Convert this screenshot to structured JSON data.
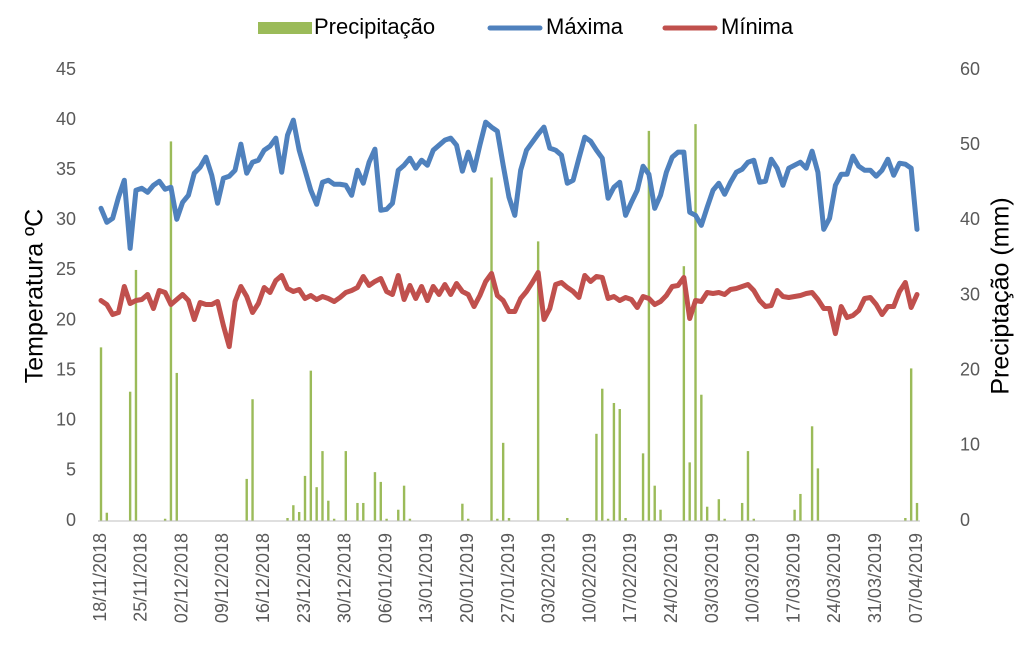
{
  "chart_data": {
    "type": "combo",
    "y_label": "Temperatura ºC",
    "y2_label": "Preciptação (mm)",
    "categories": [
      "18/11/2018",
      null,
      null,
      null,
      null,
      null,
      null,
      "25/11/2018",
      null,
      null,
      null,
      null,
      null,
      null,
      "02/12/2018",
      null,
      null,
      null,
      null,
      null,
      null,
      "09/12/2018",
      null,
      null,
      null,
      null,
      null,
      null,
      "16/12/2018",
      null,
      null,
      null,
      null,
      null,
      null,
      "23/12/2018",
      null,
      null,
      null,
      null,
      null,
      null,
      "30/12/2018",
      null,
      null,
      null,
      null,
      null,
      null,
      "06/01/2019",
      null,
      null,
      null,
      null,
      null,
      null,
      "13/01/2019",
      null,
      null,
      null,
      null,
      null,
      null,
      "20/01/2019",
      null,
      null,
      null,
      null,
      null,
      null,
      "27/01/2019",
      null,
      null,
      null,
      null,
      null,
      null,
      "03/02/2019",
      null,
      null,
      null,
      null,
      null,
      null,
      "10/02/2019",
      null,
      null,
      null,
      null,
      null,
      null,
      "17/02/2019",
      null,
      null,
      null,
      null,
      null,
      null,
      "24/02/2019",
      null,
      null,
      null,
      null,
      null,
      null,
      "03/03/2019",
      null,
      null,
      null,
      null,
      null,
      null,
      "10/03/2019",
      null,
      null,
      null,
      null,
      null,
      null,
      "17/03/2019",
      null,
      null,
      null,
      null,
      null,
      null,
      "24/03/2019",
      null,
      null,
      null,
      null,
      null,
      null,
      "31/03/2019",
      null,
      null,
      null,
      null,
      null,
      null,
      "07/04/2019"
    ],
    "series": [
      {
        "name": "Precipitação",
        "type": "bar",
        "axis": "y2",
        "color": "#9bbb59",
        "values": [
          23.1,
          1.1,
          0,
          0,
          0,
          17.2,
          33.4,
          0,
          0,
          0,
          0,
          0.3,
          50.5,
          19.7,
          0,
          0,
          0,
          0,
          0,
          0,
          0,
          0,
          0,
          0,
          0,
          5.6,
          16.2,
          0,
          0,
          0,
          0,
          0,
          0.4,
          2.1,
          1.2,
          6,
          20,
          4.5,
          9.3,
          2.7,
          0.3,
          0,
          9.3,
          0,
          2.4,
          2.4,
          0,
          6.5,
          5.2,
          0.3,
          0,
          1.5,
          4.7,
          0.3,
          0,
          0,
          0,
          0,
          0,
          0,
          0,
          0,
          2.3,
          0.3,
          0,
          0,
          0,
          45.7,
          0.3,
          10.4,
          0.4,
          0,
          0,
          0,
          0,
          37.2,
          0,
          0,
          0,
          0,
          0.4,
          0,
          0,
          0,
          0,
          11.6,
          17.6,
          0.3,
          15.7,
          14.9,
          0.4,
          0,
          0,
          9,
          51.9,
          4.7,
          1.5,
          0,
          0,
          0,
          33.9,
          7.8,
          52.8,
          16.8,
          1.9,
          0,
          2.9,
          0.3,
          0,
          0,
          2.4,
          9.3,
          0.3,
          0,
          0,
          0,
          0,
          0,
          0,
          1.5,
          3.6,
          0,
          12.6,
          7,
          0,
          0,
          0,
          0,
          0,
          0,
          0,
          0,
          0,
          0,
          0,
          0,
          0,
          0,
          0.4,
          20.3,
          2.4
        ]
      },
      {
        "name": "Máxima",
        "type": "line",
        "color": "#4f81bd",
        "values": [
          31.2,
          29.8,
          30.2,
          32.3,
          34,
          27.2,
          33,
          33.2,
          32.8,
          33.5,
          33.9,
          33.1,
          33.3,
          30.1,
          31.8,
          32.5,
          34.7,
          35.3,
          36.3,
          34.5,
          31.7,
          34.2,
          34.4,
          35,
          37.6,
          34.7,
          35.8,
          36,
          37,
          37.4,
          38.2,
          34.8,
          38.5,
          40,
          37,
          35,
          33,
          31.6,
          33.8,
          34,
          33.6,
          33.6,
          33.5,
          32.5,
          35,
          33.7,
          35.8,
          37.1,
          31,
          31.1,
          31.7,
          35,
          35.5,
          36.2,
          35.2,
          36,
          35.5,
          37,
          37.5,
          38,
          38.2,
          37.5,
          34.9,
          36.8,
          35,
          37.5,
          39.8,
          39.3,
          38.9,
          35.5,
          32.3,
          30.5,
          35,
          37,
          37.8,
          38.6,
          39.3,
          37.2,
          37,
          36.5,
          33.7,
          34,
          36.2,
          38.3,
          37.9,
          37,
          36.2,
          32.2,
          33.3,
          33.8,
          30.5,
          31.8,
          33,
          35.4,
          34.6,
          31.2,
          32.5,
          34.8,
          36.3,
          36.8,
          36.8,
          30.8,
          30.5,
          29.5,
          31.3,
          33,
          33.7,
          32.6,
          33.8,
          34.8,
          35.1,
          35.8,
          36,
          33.8,
          33.9,
          36.1,
          35.2,
          33.5,
          35.2,
          35.5,
          35.8,
          35.2,
          36.9,
          34.8,
          29.1,
          30.2,
          33.5,
          34.6,
          34.6,
          36.4,
          35.4,
          35,
          35,
          34.4,
          35,
          36.1,
          34.5,
          35.7,
          35.6,
          35.2,
          29.1
        ]
      },
      {
        "name": "Mínima",
        "type": "line",
        "color": "#c0504d",
        "values": [
          22,
          21.6,
          20.6,
          20.8,
          23.4,
          21.7,
          22,
          22.1,
          22.6,
          21.2,
          23,
          22.8,
          21.6,
          22.1,
          22.6,
          22,
          20.1,
          21.8,
          21.6,
          21.6,
          21.9,
          19.5,
          17.4,
          21.9,
          23.4,
          22.4,
          20.8,
          21.7,
          23.3,
          22.8,
          24,
          24.5,
          23.2,
          22.9,
          23.1,
          22.2,
          22.5,
          22.1,
          22.4,
          22.2,
          21.9,
          22.3,
          22.8,
          23,
          23.3,
          24.4,
          23.5,
          23.9,
          24.2,
          22.9,
          22.6,
          24.5,
          22.1,
          23.5,
          22.2,
          23.4,
          22,
          23.4,
          22.6,
          23.6,
          22.6,
          23.7,
          22.9,
          22.6,
          21.4,
          22.5,
          23.9,
          24.7,
          22.5,
          22,
          20.9,
          20.9,
          22.2,
          22.9,
          23.8,
          24.8,
          20.1,
          21.2,
          23.6,
          23.8,
          23.3,
          22.9,
          22.3,
          24.5,
          23.9,
          24.4,
          24.3,
          22.2,
          22.4,
          22,
          22.3,
          22.1,
          21.3,
          22.4,
          22.2,
          21.6,
          21.9,
          22.5,
          23.4,
          23.5,
          24.3,
          20.2,
          22,
          21.9,
          22.8,
          22.7,
          22.8,
          22.6,
          23.1,
          23.2,
          23.4,
          23.6,
          23,
          22,
          21.4,
          21.5,
          23,
          22.4,
          22.3,
          22.4,
          22.5,
          22.7,
          22.8,
          22.1,
          21.2,
          21.2,
          18.7,
          21.4,
          20.3,
          20.5,
          21,
          22.2,
          22.3,
          21.6,
          20.6,
          21.4,
          21.4,
          22.9,
          23.8,
          21.3,
          22.6
        ]
      }
    ],
    "ylim": [
      0,
      45
    ],
    "yticks": [
      0,
      5,
      10,
      15,
      20,
      25,
      30,
      35,
      40,
      45
    ],
    "y2lim": [
      0,
      60
    ],
    "y2ticks": [
      0,
      10,
      20,
      30,
      40,
      50,
      60
    ],
    "grid": false,
    "legend": "top"
  }
}
